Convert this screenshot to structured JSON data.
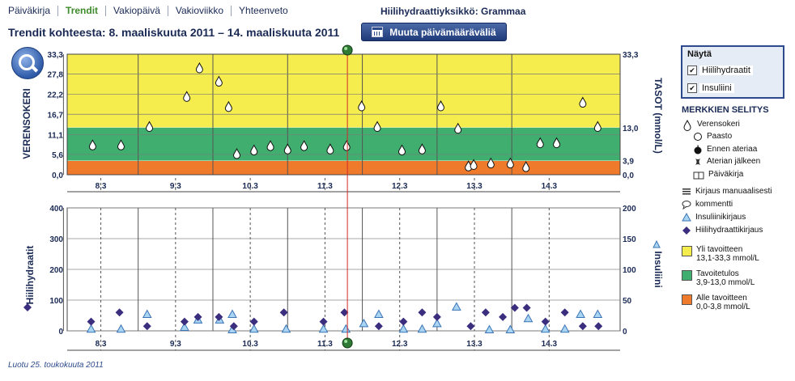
{
  "nav": {
    "tabs": [
      {
        "label": "Päiväkirja",
        "active": false
      },
      {
        "label": "Trendit",
        "active": true
      },
      {
        "label": "Vakiopäivä",
        "active": false
      },
      {
        "label": "Vakioviikko",
        "active": false
      },
      {
        "label": "Yhteenveto",
        "active": false
      }
    ]
  },
  "header": {
    "unit_label": "Hiilihydraattiyksikkö: Grammaa",
    "range_title": "Trendit kohteesta: 8. maaliskuuta 2011 – 14. maaliskuuta 2011",
    "change_button": "Muuta päivämääräväliä"
  },
  "show_panel": {
    "title": "Näytä",
    "options": [
      {
        "label": "Hiilihydraatit",
        "checked": true
      },
      {
        "label": "Insuliini",
        "checked": true
      }
    ]
  },
  "legend": {
    "title": "MERKKIEN SELITYS",
    "items": [
      {
        "label": "Verensokeri",
        "icon": "blood-drop-icon"
      },
      {
        "label": "Paasto",
        "icon": "open-circle-icon"
      },
      {
        "label": "Ennen ateriaa",
        "icon": "apple-icon"
      },
      {
        "label": "Aterian jälkeen",
        "icon": "apple-core-icon"
      },
      {
        "label": "Päiväkirja",
        "icon": "diary-icon"
      },
      {
        "label": "Kirjaus manuaalisesti",
        "icon": "lines-icon"
      },
      {
        "label": "kommentti",
        "icon": "speech-bubble-icon"
      },
      {
        "label": "Insuliinikirjaus",
        "icon": "triangle-icon"
      },
      {
        "label": "Hiilihydraattikirjaus",
        "icon": "diamond-icon"
      }
    ],
    "zones": [
      {
        "line1": "Yli tavoitteen",
        "line2": "13,1-33,3 mmol/L",
        "color": "#f5ed4e"
      },
      {
        "line1": "Tavoitetulos",
        "line2": "3,9-13,0 mmol/L",
        "color": "#3fae6e"
      },
      {
        "line1": "Alle tavoitteen",
        "line2": "0,0-3,8 mmol/L",
        "color": "#f07a2c"
      }
    ]
  },
  "footer": "Luotu 25. toukokuuta 2011",
  "chart_data": [
    {
      "type": "scatter",
      "ylabel": "VERENSOKERI",
      "ylabel_right": "TASOT (mmol/L)",
      "categories": [
        "8.3",
        "9.3",
        "10.3",
        "11.3",
        "12.3",
        "13.3",
        "14.3"
      ],
      "xlim": [
        7.55,
        14.95
      ],
      "yticks": [
        "0,0",
        "5,6",
        "11,1",
        "16,7",
        "22,2",
        "27,8",
        "33,3"
      ],
      "ytick_values": [
        0,
        5.6,
        11.1,
        16.7,
        22.2,
        27.8,
        33.3
      ],
      "ylim": [
        0,
        33.3
      ],
      "right_ticks": [
        {
          "value": 33.3,
          "label": "33,3"
        },
        {
          "value": 13.0,
          "label": "13,0"
        },
        {
          "value": 3.9,
          "label": "3,9"
        },
        {
          "value": 0,
          "label": "0,0"
        }
      ],
      "zones": [
        {
          "from": 13.1,
          "to": 33.3,
          "color": "#f5ed4e"
        },
        {
          "from": 3.9,
          "to": 13.0,
          "color": "#3fae6e"
        },
        {
          "from": 0,
          "to": 3.8,
          "color": "#f07a2c"
        }
      ],
      "marker_x": 11.3,
      "series": [
        {
          "marker": "blood-drop",
          "points": [
            [
              7.89,
              8.2
            ],
            [
              8.27,
              8.2
            ],
            [
              8.65,
              13.3
            ],
            [
              9.15,
              21.6
            ],
            [
              9.32,
              29.5
            ],
            [
              9.58,
              25.8
            ],
            [
              9.71,
              18.8
            ],
            [
              9.82,
              5.8
            ],
            [
              10.05,
              6.8
            ],
            [
              10.27,
              8.0
            ],
            [
              10.5,
              7.1
            ],
            [
              10.72,
              8.0
            ],
            [
              11.07,
              7.1
            ],
            [
              11.29,
              8.0
            ],
            [
              11.49,
              19.0
            ],
            [
              11.7,
              13.3
            ],
            [
              12.03,
              6.8
            ],
            [
              12.3,
              7.1
            ],
            [
              12.55,
              19.0
            ],
            [
              12.78,
              12.8
            ],
            [
              12.92,
              2.4
            ],
            [
              12.99,
              2.8
            ],
            [
              13.22,
              3.2
            ],
            [
              13.48,
              3.2
            ],
            [
              13.69,
              2.2
            ],
            [
              13.88,
              8.8
            ],
            [
              14.1,
              8.8
            ],
            [
              14.45,
              20.0
            ],
            [
              14.65,
              13.3
            ]
          ]
        }
      ]
    },
    {
      "type": "scatter",
      "ylabel": "Hiilihydraatit",
      "ylabel_right": "Insuliini",
      "categories": [
        "8.3",
        "9.3",
        "10.3",
        "11.3",
        "12.3",
        "13.3",
        "14.3"
      ],
      "xlim": [
        7.55,
        14.95
      ],
      "yticks": [
        "0",
        "100",
        "200",
        "300",
        "400"
      ],
      "ylim": [
        0,
        400
      ],
      "y2ticks": [
        "0",
        "50",
        "100",
        "150",
        "200"
      ],
      "y2lim": [
        0,
        200
      ],
      "marker_x": 11.3,
      "series": [
        {
          "name": "Hiilihydraattikirjaus",
          "marker": "diamond",
          "axis": "left",
          "points": [
            [
              7.87,
              30
            ],
            [
              8.25,
              60
            ],
            [
              8.62,
              15
            ],
            [
              9.12,
              30
            ],
            [
              9.3,
              45
            ],
            [
              9.58,
              45
            ],
            [
              9.78,
              15
            ],
            [
              10.05,
              30
            ],
            [
              10.45,
              60
            ],
            [
              10.98,
              30
            ],
            [
              11.26,
              60
            ],
            [
              11.72,
              15
            ],
            [
              12.05,
              30
            ],
            [
              12.3,
              60
            ],
            [
              12.5,
              45
            ],
            [
              12.95,
              15
            ],
            [
              13.15,
              60
            ],
            [
              13.38,
              45
            ],
            [
              13.54,
              75
            ],
            [
              13.7,
              75
            ],
            [
              13.95,
              30
            ],
            [
              14.21,
              60
            ],
            [
              14.45,
              15
            ],
            [
              14.66,
              15
            ]
          ]
        },
        {
          "name": "Insuliinikirjaus",
          "marker": "triangle",
          "axis": "right",
          "points": [
            [
              7.87,
              3
            ],
            [
              8.27,
              3
            ],
            [
              8.62,
              27
            ],
            [
              9.12,
              6
            ],
            [
              9.3,
              18
            ],
            [
              9.59,
              18
            ],
            [
              9.76,
              27
            ],
            [
              9.76,
              2
            ],
            [
              10.05,
              3
            ],
            [
              10.48,
              3
            ],
            [
              10.98,
              3
            ],
            [
              11.28,
              3
            ],
            [
              11.52,
              12
            ],
            [
              11.72,
              27
            ],
            [
              12.05,
              3
            ],
            [
              12.3,
              3
            ],
            [
              12.5,
              12
            ],
            [
              12.76,
              39
            ],
            [
              13.2,
              2
            ],
            [
              13.48,
              2
            ],
            [
              13.72,
              20
            ],
            [
              13.95,
              3
            ],
            [
              14.21,
              3
            ],
            [
              14.42,
              27
            ],
            [
              14.65,
              27
            ]
          ]
        }
      ]
    }
  ]
}
